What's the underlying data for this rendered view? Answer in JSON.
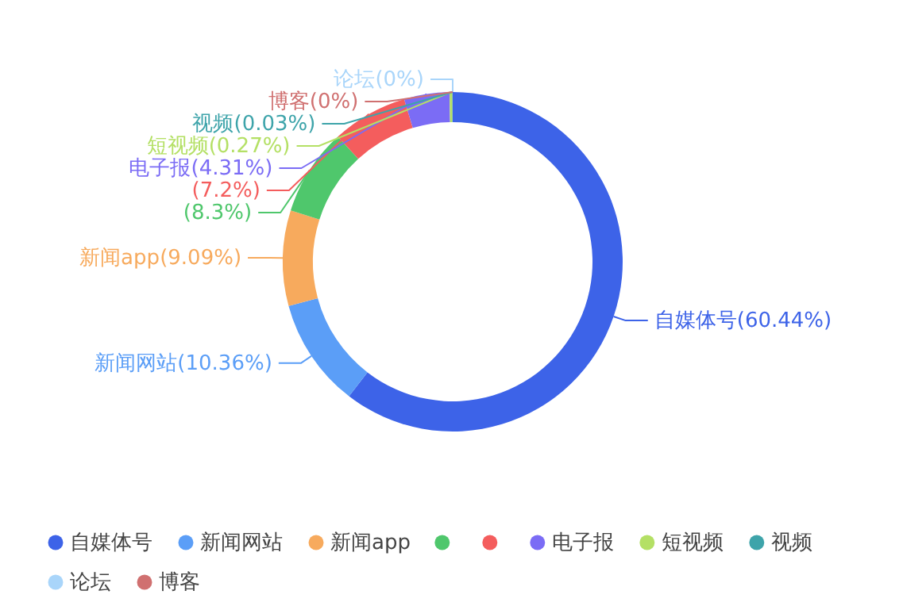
{
  "chart_data": {
    "type": "donut",
    "categories": [
      "自媒体号",
      "新闻网站",
      "新闻app",
      null,
      null,
      "电子报",
      "短视频",
      "视频",
      "论坛",
      "博客"
    ],
    "values": [
      60.44,
      10.36,
      9.09,
      8.3,
      7.2,
      4.31,
      0.27,
      0.03,
      0,
      0
    ],
    "colors": [
      "#3d63e8",
      "#5b9ef7",
      "#f7aa5d",
      "#4fc76c",
      "#f45d5d",
      "#7b6cf5",
      "#b4e065",
      "#3ea4aa",
      "#a9d5fa",
      "#d07070"
    ],
    "value_labels": [
      "(60.44%)",
      "(10.36%)",
      "(9.09%)",
      "(8.3%)",
      "(7.2%)",
      "(4.31%)",
      "(0.27%)",
      "(0.03%)",
      "(0%)",
      "(0%)"
    ],
    "legend": "bottom"
  }
}
